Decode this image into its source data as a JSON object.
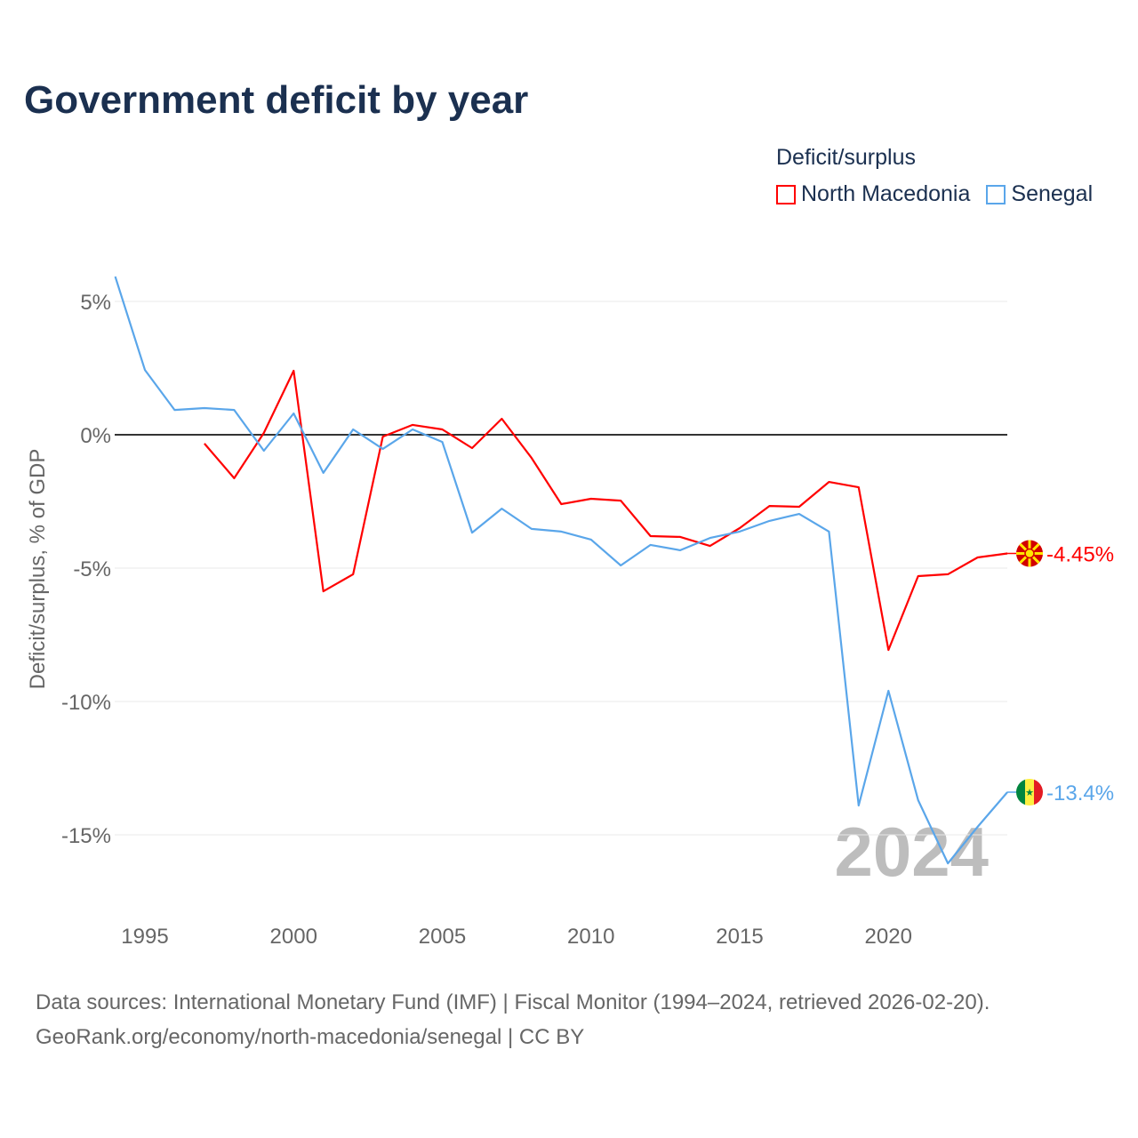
{
  "chart_data": {
    "type": "line",
    "title": "Government deficit by year",
    "xlabel": "",
    "ylabel": "Deficit/surplus, % of GDP",
    "xlim": [
      1994,
      2024
    ],
    "ylim": [
      -17,
      6
    ],
    "x_ticks": [
      1995,
      2000,
      2005,
      2010,
      2015,
      2020
    ],
    "x_tick_labels": [
      "1995",
      "2000",
      "2005",
      "2010",
      "2015",
      "2020"
    ],
    "y_ticks": [
      5,
      0,
      -5,
      -10,
      -15
    ],
    "y_tick_labels": [
      "5%",
      "0%",
      "-5%",
      "-10%",
      "-15%"
    ],
    "grid": true,
    "legend_title": "Deficit/surplus",
    "legend_position": "top-right",
    "year_watermark": "2024",
    "series": [
      {
        "name": "North Macedonia",
        "color": "#ff0000",
        "end_label": "-4.45%",
        "x": [
          1997,
          1998,
          1999,
          2000,
          2001,
          2002,
          2003,
          2004,
          2005,
          2006,
          2007,
          2008,
          2009,
          2010,
          2011,
          2012,
          2013,
          2014,
          2015,
          2016,
          2017,
          2018,
          2019,
          2020,
          2021,
          2022,
          2023,
          2024
        ],
        "values": [
          -0.33,
          -1.63,
          0.07,
          2.4,
          -5.87,
          -5.23,
          -0.07,
          0.37,
          0.2,
          -0.5,
          0.6,
          -0.87,
          -2.6,
          -2.4,
          -2.47,
          -3.8,
          -3.83,
          -4.17,
          -3.5,
          -2.67,
          -2.7,
          -1.77,
          -1.97,
          -8.07,
          -5.3,
          -5.23,
          -4.6,
          -4.45
        ]
      },
      {
        "name": "Senegal",
        "color": "#5aa6ea",
        "end_label": "-13.4%",
        "x": [
          1994,
          1995,
          1996,
          1997,
          1998,
          1999,
          2000,
          2001,
          2002,
          2003,
          2004,
          2005,
          2006,
          2007,
          2008,
          2009,
          2010,
          2011,
          2012,
          2013,
          2014,
          2015,
          2016,
          2017,
          2018,
          2019,
          2020,
          2021,
          2022,
          2023,
          2024
        ],
        "values": [
          5.93,
          2.43,
          0.93,
          1.0,
          0.93,
          -0.6,
          0.8,
          -1.43,
          0.2,
          -0.53,
          0.2,
          -0.27,
          -3.67,
          -2.77,
          -3.53,
          -3.63,
          -3.93,
          -4.9,
          -4.13,
          -4.33,
          -3.87,
          -3.63,
          -3.23,
          -2.97,
          -3.63,
          -13.9,
          -9.6,
          -13.7,
          -16.07,
          -14.7,
          -13.4
        ]
      }
    ]
  },
  "source": {
    "line1": "Data sources: International Monetary Fund (IMF) | Fiscal Monitor (1994–2024, retrieved 2026-02-20).",
    "line2": "GeoRank.org/economy/north-macedonia/senegal | CC BY"
  }
}
